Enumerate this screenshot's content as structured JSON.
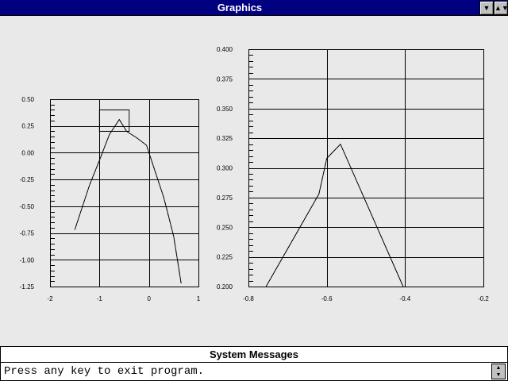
{
  "window": {
    "title": "Graphics",
    "down_arrow_icon": "triangle-down",
    "restore_icon": "up-down-arrows"
  },
  "messages": {
    "title": "System Messages",
    "text": "Press any key to exit program.",
    "scroll_icon": "up-down-arrows"
  },
  "chart_data": [
    {
      "type": "line",
      "title": "",
      "xlabel": "",
      "ylabel": "",
      "xlim": [
        -2,
        1
      ],
      "ylim": [
        -1.25,
        0.5
      ],
      "x_ticks": [
        "-2",
        "-1",
        "0",
        "1"
      ],
      "x_tick_values": [
        -2,
        -1,
        0,
        1
      ],
      "y_ticks": [
        "0.50",
        "0.25",
        "0.00",
        "-0.25",
        "-0.50",
        "-0.75",
        "-1.00",
        "-1.25"
      ],
      "y_tick_values": [
        0.5,
        0.25,
        0,
        -0.25,
        -0.5,
        -0.75,
        -1.0,
        -1.25
      ],
      "grid": true,
      "series": [
        {
          "x": [
            -1.5,
            -1.2,
            -1.0,
            -0.8,
            -0.6,
            -0.45,
            -0.25,
            -0.05,
            0.1,
            0.3,
            0.5,
            0.65
          ],
          "y": [
            -0.72,
            -0.3,
            -0.07,
            0.17,
            0.31,
            0.2,
            0.14,
            0.07,
            -0.14,
            -0.42,
            -0.78,
            -1.22
          ]
        }
      ],
      "box_annotation": {
        "x0": -1.0,
        "x1": -0.4,
        "y0": 0.2,
        "y1": 0.4
      },
      "tick_direction": "inside-left"
    },
    {
      "type": "line",
      "title": "",
      "xlabel": "",
      "ylabel": "",
      "xlim": [
        -0.8,
        -0.2
      ],
      "ylim": [
        0.2,
        0.4
      ],
      "x_ticks": [
        "-0.8",
        "-0.6",
        "-0.4",
        "-0.2"
      ],
      "x_tick_values": [
        -0.8,
        -0.6,
        -0.4,
        -0.2
      ],
      "y_ticks": [
        "0.400",
        "0.375",
        "0.350",
        "0.325",
        "0.300",
        "0.275",
        "0.250",
        "0.225",
        "0.200"
      ],
      "y_tick_values": [
        0.4,
        0.375,
        0.35,
        0.325,
        0.3,
        0.275,
        0.25,
        0.225,
        0.2
      ],
      "grid": true,
      "series": [
        {
          "x": [
            -0.755,
            -0.62,
            -0.6,
            -0.565,
            -0.405
          ],
          "y": [
            0.2,
            0.278,
            0.308,
            0.32,
            0.2
          ]
        }
      ],
      "tick_direction": "inside-left"
    }
  ]
}
